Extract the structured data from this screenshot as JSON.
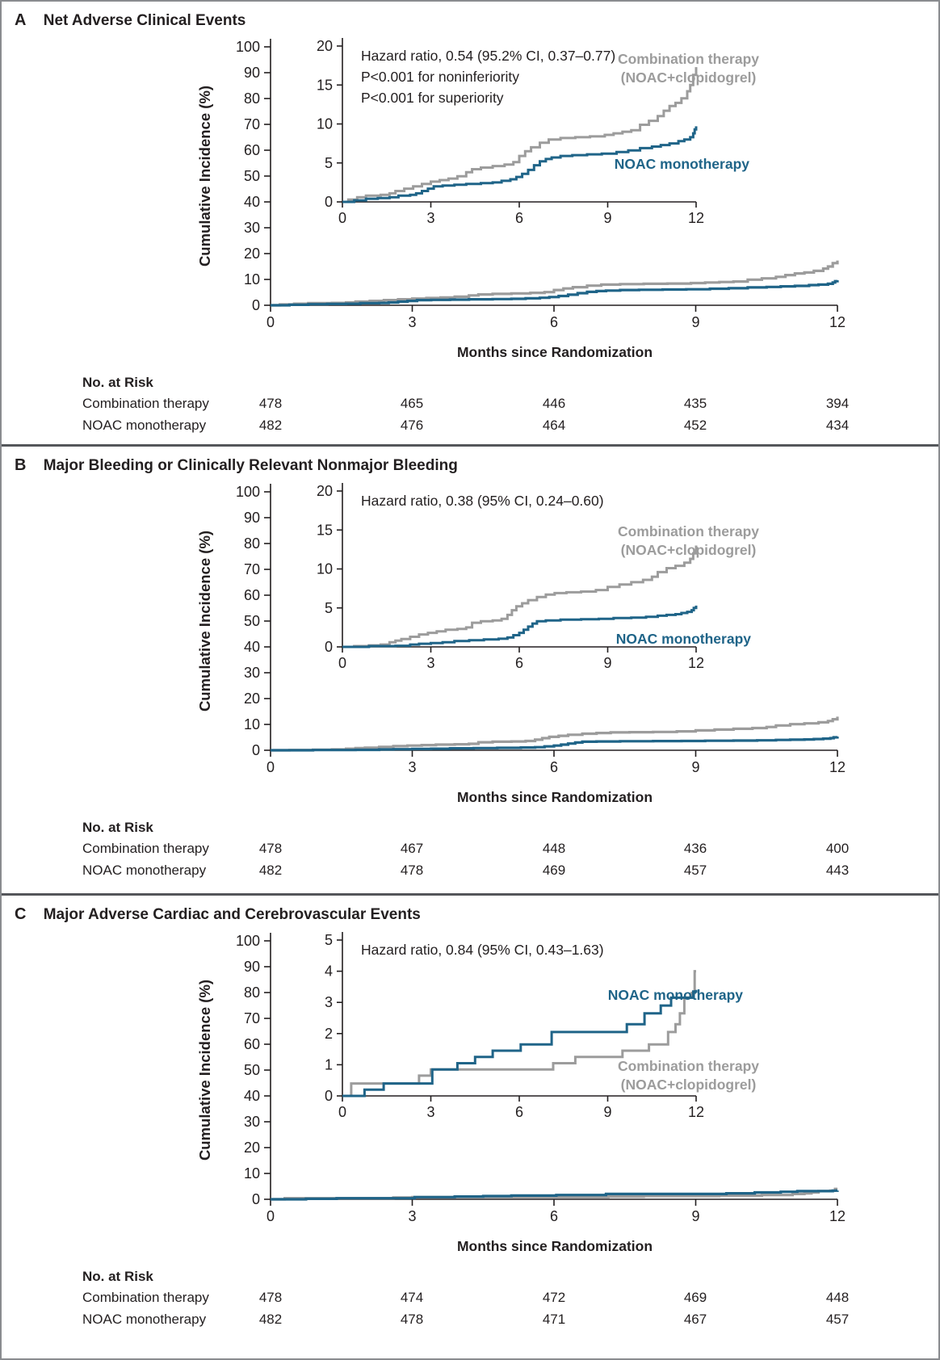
{
  "colors": {
    "combination_gray": "#9c9c9c",
    "noac_blue": "#1f6488",
    "text_dark": "#231f20",
    "divider_gray": "#54565a",
    "border_gray": "#8a8c8f"
  },
  "chart_data": [
    {
      "type": "line",
      "panel_letter": "A",
      "title": "Net Adverse Clinical Events",
      "xlabel": "Months since Randomization",
      "ylabel": "Cumulative Incidence (%)",
      "xlim": [
        0,
        12
      ],
      "xticks": [
        0,
        3,
        6,
        9,
        12
      ],
      "main_ylim": [
        0,
        100
      ],
      "main_yticks": [
        0,
        10,
        20,
        30,
        40,
        50,
        60,
        70,
        80,
        90,
        100
      ],
      "inset_ylim": [
        0,
        20
      ],
      "inset_yticks": [
        0,
        5,
        10,
        15,
        20
      ],
      "grid": "off",
      "annotation_lines": [
        "Hazard ratio, 0.54 (95.2% CI, 0.37–0.77)",
        "P<0.001 for noninferiority",
        "P<0.001 for superiority"
      ],
      "legend": {
        "combination": "Combination therapy\n(NOAC+clopidogrel)",
        "noac": "NOAC monotherapy"
      },
      "series": [
        {
          "name": "Combination therapy (NOAC+clopidogrel)",
          "color_key": "combination_gray",
          "step_points": [
            [
              0,
              0
            ],
            [
              0.2,
              0.3
            ],
            [
              0.5,
              0.6
            ],
            [
              0.8,
              0.8
            ],
            [
              1.3,
              0.9
            ],
            [
              1.6,
              1.1
            ],
            [
              1.8,
              1.4
            ],
            [
              2.1,
              1.7
            ],
            [
              2.4,
              2.0
            ],
            [
              2.7,
              2.3
            ],
            [
              3.0,
              2.6
            ],
            [
              3.3,
              2.8
            ],
            [
              3.6,
              3.0
            ],
            [
              3.9,
              3.3
            ],
            [
              4.2,
              3.8
            ],
            [
              4.4,
              4.2
            ],
            [
              4.7,
              4.4
            ],
            [
              5.1,
              4.6
            ],
            [
              5.5,
              4.8
            ],
            [
              5.8,
              5.1
            ],
            [
              6.0,
              5.9
            ],
            [
              6.2,
              6.5
            ],
            [
              6.4,
              7.0
            ],
            [
              6.7,
              7.6
            ],
            [
              7.0,
              8.0
            ],
            [
              7.4,
              8.2
            ],
            [
              7.9,
              8.3
            ],
            [
              8.4,
              8.4
            ],
            [
              8.9,
              8.6
            ],
            [
              9.2,
              8.8
            ],
            [
              9.5,
              9.0
            ],
            [
              9.8,
              9.2
            ],
            [
              10.1,
              9.9
            ],
            [
              10.4,
              10.4
            ],
            [
              10.7,
              11.0
            ],
            [
              10.9,
              11.7
            ],
            [
              11.1,
              12.3
            ],
            [
              11.3,
              12.7
            ],
            [
              11.5,
              13.3
            ],
            [
              11.7,
              14.2
            ],
            [
              11.8,
              15.0
            ],
            [
              11.9,
              16.3
            ],
            [
              12,
              17.3
            ]
          ]
        },
        {
          "name": "NOAC monotherapy",
          "color_key": "noac_blue",
          "step_points": [
            [
              0,
              0
            ],
            [
              0.4,
              0.2
            ],
            [
              0.8,
              0.4
            ],
            [
              1.2,
              0.5
            ],
            [
              1.6,
              0.6
            ],
            [
              1.9,
              0.8
            ],
            [
              2.3,
              0.9
            ],
            [
              2.5,
              1.1
            ],
            [
              2.7,
              1.4
            ],
            [
              2.9,
              1.7
            ],
            [
              3.1,
              2.0
            ],
            [
              3.4,
              2.1
            ],
            [
              3.8,
              2.2
            ],
            [
              4.2,
              2.3
            ],
            [
              4.7,
              2.4
            ],
            [
              5.1,
              2.5
            ],
            [
              5.4,
              2.7
            ],
            [
              5.7,
              2.9
            ],
            [
              5.9,
              3.2
            ],
            [
              6.1,
              3.6
            ],
            [
              6.3,
              4.1
            ],
            [
              6.5,
              4.7
            ],
            [
              6.7,
              5.2
            ],
            [
              6.9,
              5.5
            ],
            [
              7.1,
              5.7
            ],
            [
              7.4,
              5.9
            ],
            [
              7.8,
              6.0
            ],
            [
              8.3,
              6.1
            ],
            [
              8.8,
              6.2
            ],
            [
              9.3,
              6.4
            ],
            [
              9.7,
              6.6
            ],
            [
              10.1,
              6.9
            ],
            [
              10.5,
              7.1
            ],
            [
              10.8,
              7.3
            ],
            [
              11.1,
              7.5
            ],
            [
              11.4,
              7.8
            ],
            [
              11.6,
              8.0
            ],
            [
              11.8,
              8.3
            ],
            [
              11.9,
              8.8
            ],
            [
              11.95,
              9.3
            ],
            [
              12,
              9.7
            ]
          ]
        }
      ],
      "no_at_risk": {
        "label": "No. at Risk",
        "timepoints": [
          0,
          3,
          6,
          9,
          12
        ],
        "rows": [
          {
            "label": "Combination therapy",
            "counts": [
              478,
              465,
              446,
              435,
              394
            ]
          },
          {
            "label": "NOAC monotherapy",
            "counts": [
              482,
              476,
              464,
              452,
              434
            ]
          }
        ]
      }
    },
    {
      "type": "line",
      "panel_letter": "B",
      "title": "Major Bleeding or Clinically Relevant Nonmajor Bleeding",
      "xlabel": "Months since Randomization",
      "ylabel": "Cumulative Incidence (%)",
      "xlim": [
        0,
        12
      ],
      "xticks": [
        0,
        3,
        6,
        9,
        12
      ],
      "main_ylim": [
        0,
        100
      ],
      "main_yticks": [
        0,
        10,
        20,
        30,
        40,
        50,
        60,
        70,
        80,
        90,
        100
      ],
      "inset_ylim": [
        0,
        20
      ],
      "inset_yticks": [
        0,
        5,
        10,
        15,
        20
      ],
      "grid": "off",
      "annotation_lines": [
        "Hazard ratio, 0.38 (95% CI, 0.24–0.60)"
      ],
      "legend": {
        "combination": "Combination therapy\n(NOAC+clopidogrel)",
        "noac": "NOAC monotherapy"
      },
      "series": [
        {
          "name": "Combination therapy (NOAC+clopidogrel)",
          "color_key": "combination_gray",
          "step_points": [
            [
              0,
              0
            ],
            [
              0.4,
              0.1
            ],
            [
              0.9,
              0.2
            ],
            [
              1.3,
              0.3
            ],
            [
              1.6,
              0.6
            ],
            [
              1.8,
              0.8
            ],
            [
              2.0,
              1.0
            ],
            [
              2.3,
              1.3
            ],
            [
              2.6,
              1.6
            ],
            [
              2.9,
              1.8
            ],
            [
              3.2,
              2.0
            ],
            [
              3.5,
              2.2
            ],
            [
              3.9,
              2.3
            ],
            [
              4.2,
              2.5
            ],
            [
              4.4,
              3.1
            ],
            [
              4.7,
              3.3
            ],
            [
              5.1,
              3.4
            ],
            [
              5.4,
              3.6
            ],
            [
              5.6,
              4.1
            ],
            [
              5.75,
              4.7
            ],
            [
              5.9,
              5.2
            ],
            [
              6.1,
              5.6
            ],
            [
              6.3,
              6.0
            ],
            [
              6.6,
              6.4
            ],
            [
              6.9,
              6.7
            ],
            [
              7.2,
              6.9
            ],
            [
              7.6,
              7.0
            ],
            [
              8.1,
              7.1
            ],
            [
              8.6,
              7.3
            ],
            [
              9.0,
              7.7
            ],
            [
              9.4,
              8.0
            ],
            [
              9.8,
              8.3
            ],
            [
              10.2,
              8.6
            ],
            [
              10.5,
              9.0
            ],
            [
              10.7,
              9.6
            ],
            [
              11.0,
              10.1
            ],
            [
              11.3,
              10.4
            ],
            [
              11.6,
              10.8
            ],
            [
              11.8,
              11.3
            ],
            [
              11.9,
              12.0
            ],
            [
              12,
              13.0
            ]
          ]
        },
        {
          "name": "NOAC monotherapy",
          "color_key": "noac_blue",
          "step_points": [
            [
              0,
              0
            ],
            [
              0.9,
              0.1
            ],
            [
              1.8,
              0.15
            ],
            [
              2.3,
              0.3
            ],
            [
              2.6,
              0.4
            ],
            [
              3.0,
              0.5
            ],
            [
              3.4,
              0.6
            ],
            [
              3.8,
              0.75
            ],
            [
              4.3,
              0.85
            ],
            [
              4.8,
              0.95
            ],
            [
              5.3,
              1.05
            ],
            [
              5.6,
              1.2
            ],
            [
              5.8,
              1.5
            ],
            [
              6.0,
              1.8
            ],
            [
              6.15,
              2.2
            ],
            [
              6.3,
              2.6
            ],
            [
              6.45,
              3.0
            ],
            [
              6.6,
              3.3
            ],
            [
              6.9,
              3.4
            ],
            [
              7.4,
              3.5
            ],
            [
              8.1,
              3.55
            ],
            [
              8.7,
              3.6
            ],
            [
              9.2,
              3.7
            ],
            [
              9.8,
              3.75
            ],
            [
              10.3,
              3.85
            ],
            [
              10.7,
              4.0
            ],
            [
              11.0,
              4.1
            ],
            [
              11.3,
              4.2
            ],
            [
              11.5,
              4.35
            ],
            [
              11.7,
              4.5
            ],
            [
              11.85,
              4.7
            ],
            [
              11.92,
              5.0
            ],
            [
              12,
              5.3
            ]
          ]
        }
      ],
      "no_at_risk": {
        "label": "No. at Risk",
        "timepoints": [
          0,
          3,
          6,
          9,
          12
        ],
        "rows": [
          {
            "label": "Combination therapy",
            "counts": [
              478,
              467,
              448,
              436,
              400
            ]
          },
          {
            "label": "NOAC monotherapy",
            "counts": [
              482,
              478,
              469,
              457,
              443
            ]
          }
        ]
      }
    },
    {
      "type": "line",
      "panel_letter": "C",
      "title": "Major Adverse Cardiac and Cerebrovascular Events",
      "xlabel": "Months since Randomization",
      "ylabel": "Cumulative Incidence (%)",
      "xlim": [
        0,
        12
      ],
      "xticks": [
        0,
        3,
        6,
        9,
        12
      ],
      "main_ylim": [
        0,
        100
      ],
      "main_yticks": [
        0,
        10,
        20,
        30,
        40,
        50,
        60,
        70,
        80,
        90,
        100
      ],
      "inset_ylim": [
        0,
        5
      ],
      "inset_yticks": [
        0,
        1,
        2,
        3,
        4,
        5
      ],
      "grid": "off",
      "annotation_lines": [
        "Hazard ratio, 0.84 (95% CI, 0.43–1.63)"
      ],
      "legend": {
        "combination": "Combination therapy\n(NOAC+clopidogrel)",
        "noac": "NOAC monotherapy"
      },
      "series": [
        {
          "name": "Combination therapy (NOAC+clopidogrel)",
          "color_key": "combination_gray",
          "step_points": [
            [
              0,
              0
            ],
            [
              0.3,
              0.4
            ],
            [
              2.6,
              0.65
            ],
            [
              3.0,
              0.85
            ],
            [
              7.15,
              1.05
            ],
            [
              7.9,
              1.25
            ],
            [
              9.5,
              1.45
            ],
            [
              10.4,
              1.65
            ],
            [
              11.05,
              2.05
            ],
            [
              11.3,
              2.3
            ],
            [
              11.45,
              2.65
            ],
            [
              11.6,
              3.15
            ],
            [
              11.85,
              3.3
            ],
            [
              11.95,
              4.0
            ],
            [
              12,
              4.0
            ]
          ]
        },
        {
          "name": "NOAC monotherapy",
          "color_key": "noac_blue",
          "step_points": [
            [
              0,
              0
            ],
            [
              0.75,
              0.2
            ],
            [
              1.4,
              0.4
            ],
            [
              3.05,
              0.85
            ],
            [
              3.9,
              1.05
            ],
            [
              4.5,
              1.25
            ],
            [
              5.1,
              1.45
            ],
            [
              6.05,
              1.65
            ],
            [
              7.1,
              2.05
            ],
            [
              9.65,
              2.3
            ],
            [
              10.25,
              2.65
            ],
            [
              10.8,
              2.9
            ],
            [
              11.15,
              3.15
            ],
            [
              11.9,
              3.35
            ],
            [
              12,
              3.4
            ]
          ]
        }
      ],
      "no_at_risk": {
        "label": "No. at Risk",
        "timepoints": [
          0,
          3,
          6,
          9,
          12
        ],
        "rows": [
          {
            "label": "Combination therapy",
            "counts": [
              478,
              474,
              472,
              469,
              448
            ]
          },
          {
            "label": "NOAC monotherapy",
            "counts": [
              482,
              478,
              471,
              467,
              457
            ]
          }
        ]
      }
    }
  ]
}
